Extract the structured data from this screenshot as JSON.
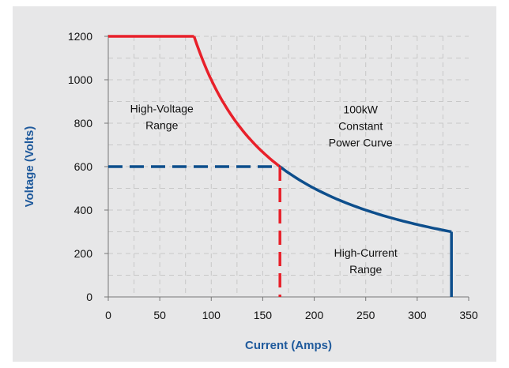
{
  "chart_data": {
    "type": "line",
    "xlabel": "Current (Amps)",
    "ylabel": "Voltage (Volts)",
    "xlim": [
      0,
      350
    ],
    "ylim": [
      0,
      1200
    ],
    "xticks": [
      0,
      50,
      100,
      150,
      200,
      250,
      300,
      350
    ],
    "yticks": [
      0,
      200,
      400,
      600,
      800,
      1000,
      1200
    ],
    "grid": true,
    "colors": {
      "red": "#e8202a",
      "blue": "#0d4e8c",
      "panel": "#e7e7e8",
      "grid": "#c8c8c8"
    },
    "series": [
      {
        "segment": "high-voltage-flat",
        "color": "#e8202a",
        "style": "solid",
        "points": [
          [
            0,
            1200
          ],
          [
            83.3,
            1200
          ]
        ]
      },
      {
        "segment": "high-voltage-curve",
        "color": "#e8202a",
        "style": "solid",
        "function": "P/x",
        "power_w": 100000,
        "x_range": [
          83.3,
          166.7
        ]
      },
      {
        "segment": "high-current-curve",
        "color": "#0d4e8c",
        "style": "solid",
        "function": "P/x",
        "power_w": 100000,
        "x_range": [
          166.7,
          333.3
        ]
      },
      {
        "segment": "high-current-vertical",
        "color": "#0d4e8c",
        "style": "solid",
        "points": [
          [
            333.3,
            300
          ],
          [
            333.3,
            0
          ]
        ]
      },
      {
        "segment": "600v-reference",
        "color": "#0d4e8c",
        "style": "dashed",
        "points": [
          [
            0,
            600
          ],
          [
            166.7,
            600
          ]
        ]
      },
      {
        "segment": "166a-reference",
        "color": "#e8202a",
        "style": "dashed",
        "points": [
          [
            166.7,
            600
          ],
          [
            166.7,
            0
          ]
        ]
      }
    ],
    "annotations": [
      {
        "id": "high-voltage",
        "lines": [
          "High-Voltage",
          "Range"
        ],
        "x": 52,
        "y": 850
      },
      {
        "id": "constant-power",
        "lines": [
          "100kW",
          "Constant",
          "Power Curve"
        ],
        "x": 245,
        "y": 845
      },
      {
        "id": "high-current",
        "lines": [
          "High-Current",
          "Range"
        ],
        "x": 250,
        "y": 185
      }
    ]
  }
}
